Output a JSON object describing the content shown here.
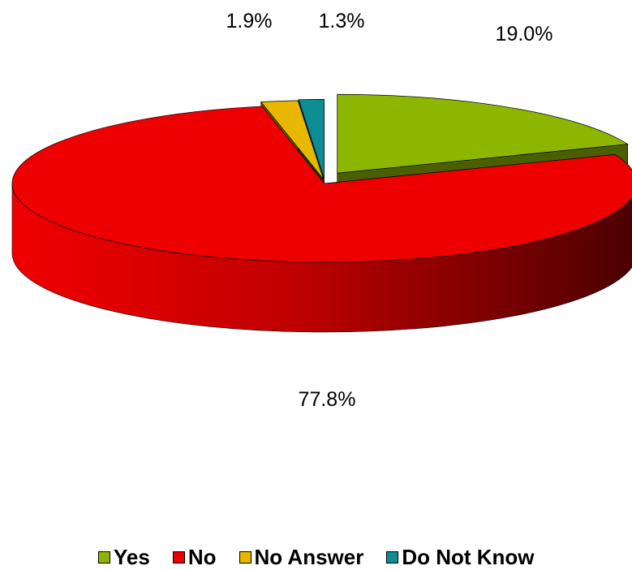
{
  "chart_data": {
    "type": "pie",
    "title": "",
    "style": "3d-exploded",
    "legend_position": "bottom",
    "slices": [
      {
        "label": "Yes",
        "value": 19.0,
        "value_label": "19.0%",
        "color": "#8DB600",
        "side_color": "#4A6000"
      },
      {
        "label": "No",
        "value": 77.8,
        "value_label": "77.8%",
        "color": "#EE0000",
        "side_color": "#700000"
      },
      {
        "label": "No Answer",
        "value": 1.9,
        "value_label": "1.9%",
        "color": "#E8B800",
        "side_color": "#6F5800"
      },
      {
        "label": "Do Not Know",
        "value": 1.3,
        "value_label": "1.3%",
        "color": "#0E8C94",
        "side_color": "#064449"
      }
    ]
  }
}
